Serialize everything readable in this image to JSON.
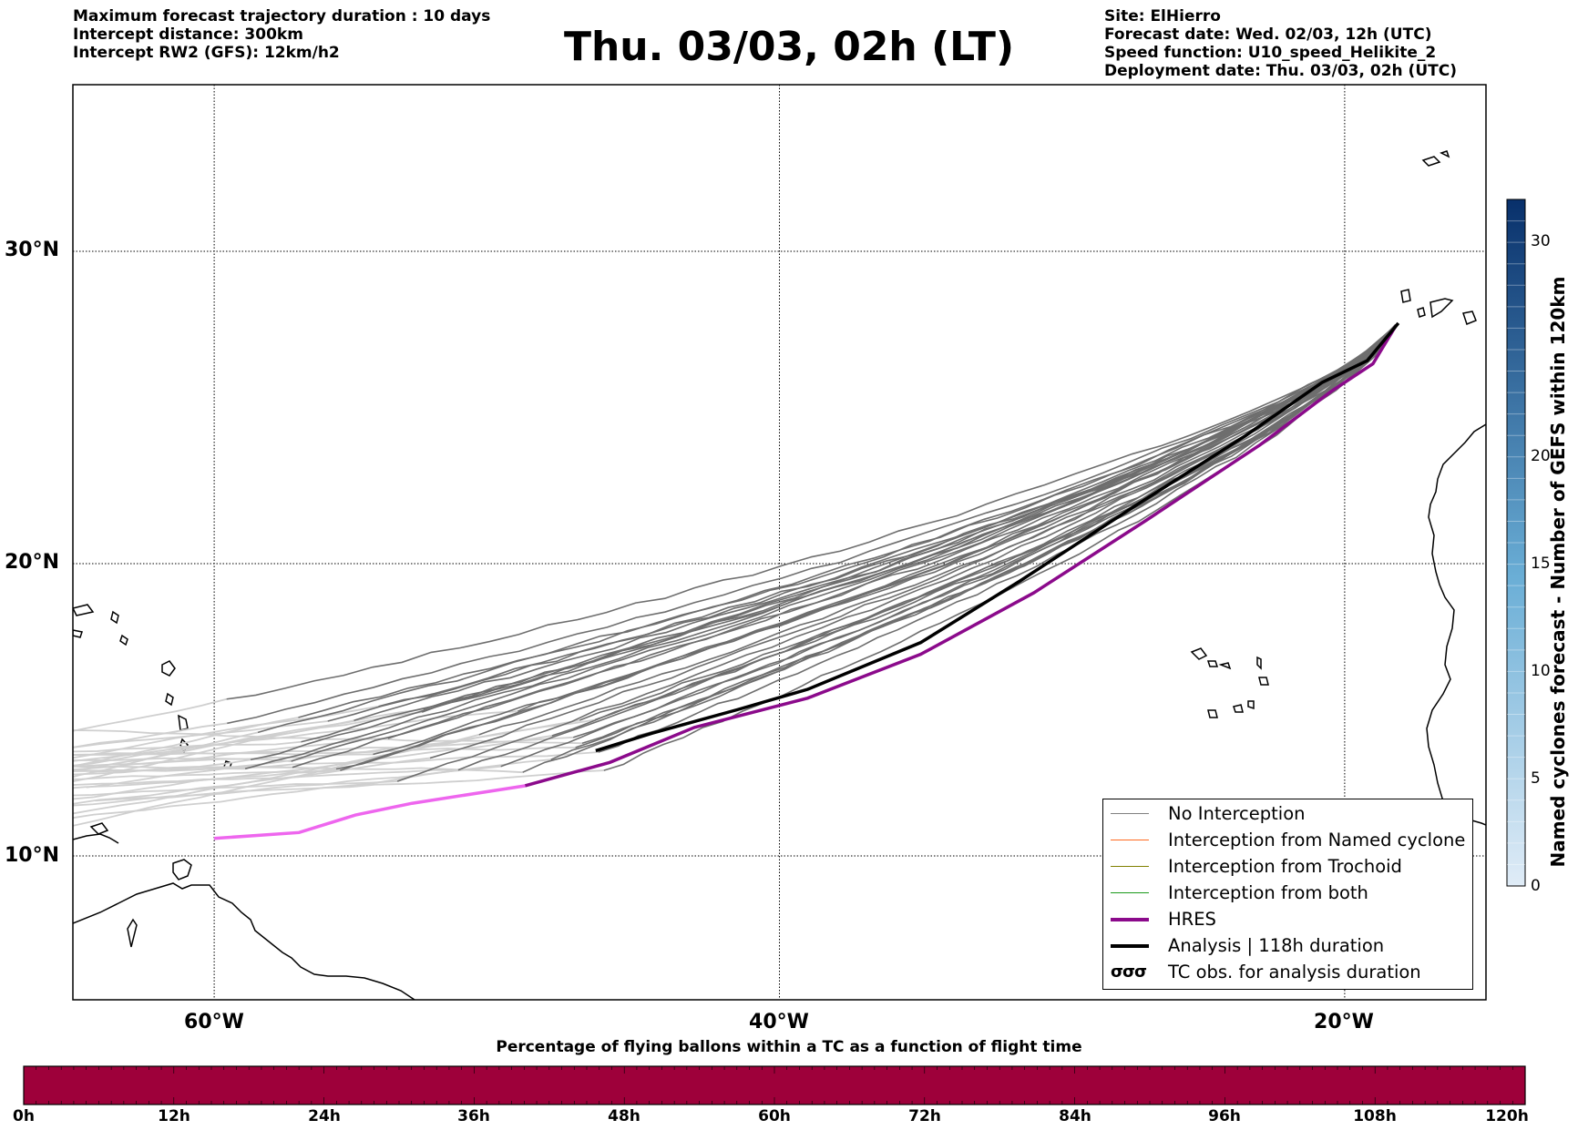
{
  "header_left": [
    "Maximum forecast trajectory duration : 10 days",
    "Intercept distance: 300km",
    "Intercept RW2 (GFS):  12km/h2"
  ],
  "title": "Thu. 03/03, 02h (LT)",
  "header_right": [
    "Site: ElHierro",
    "Forecast date: Wed. 02/03, 12h (UTC)",
    "Speed function: U10_speed_Helikite_2",
    "Deployment date: Thu. 03/03, 02h (UTC)"
  ],
  "map": {
    "lat_labels": [
      "30°N",
      "20°N",
      "10°N"
    ],
    "lon_labels": [
      "60°W",
      "40°W",
      "20°W"
    ],
    "grid": true
  },
  "legend": {
    "placement": "lower-right",
    "items": [
      {
        "label": "No Interception",
        "color": "#808080"
      },
      {
        "label": "Interception from Named cyclone",
        "color": "#ff6a1f"
      },
      {
        "label": "Interception from Trochoid",
        "color": "#808000"
      },
      {
        "label": "Interception from both",
        "color": "#1a9a1a"
      },
      {
        "label": "HRES",
        "color": "#8b0a8b"
      },
      {
        "label": "Analysis | 118h duration",
        "color": "#000000"
      },
      {
        "label": "TC obs. for analysis duration",
        "symbol": "σσσ"
      }
    ]
  },
  "right_colorbar": {
    "title": "Named cyclones forecast - Number of GEFS within 120km",
    "ticks": [
      "0",
      "5",
      "10",
      "15",
      "20",
      "30"
    ],
    "colors": [
      "#dce9f6",
      "#08306b"
    ]
  },
  "bottom_colorbar": {
    "title": "Percentage of flying ballons within a TC as a function of flight time",
    "ticks": [
      "0h",
      "12h",
      "24h",
      "36h",
      "48h",
      "60h",
      "72h",
      "84h",
      "96h",
      "108h",
      "120h"
    ],
    "color": "#9e003a"
  },
  "chart_data": {
    "type": "line",
    "xlabel": "",
    "ylabel": "",
    "xlim": [
      -65,
      -15
    ],
    "ylim": [
      5,
      35
    ],
    "series": [
      {
        "name": "HRES",
        "x": [
          -18.2,
          -19.0,
          -20.5,
          -23.0,
          -27.0,
          -31.0,
          -35.0,
          -39.0,
          -43.0,
          -46.0,
          -49.0,
          -53.0,
          -55.0,
          -57.0,
          -60.0
        ],
        "y": [
          27.6,
          26.4,
          25.5,
          23.8,
          21.4,
          19.0,
          16.9,
          15.4,
          14.4,
          13.2,
          12.4,
          11.8,
          11.4,
          10.8,
          10.6
        ]
      },
      {
        "name": "Analysis | 118h duration",
        "x": [
          -18.1,
          -19.2,
          -20.8,
          -23.5,
          -27.5,
          -31.5,
          -35.0,
          -39.0,
          -41.5,
          -44.5,
          -46.5
        ],
        "y": [
          27.7,
          26.5,
          25.8,
          24.1,
          21.8,
          19.4,
          17.3,
          15.7,
          15.0,
          14.2,
          13.6
        ]
      }
    ]
  }
}
